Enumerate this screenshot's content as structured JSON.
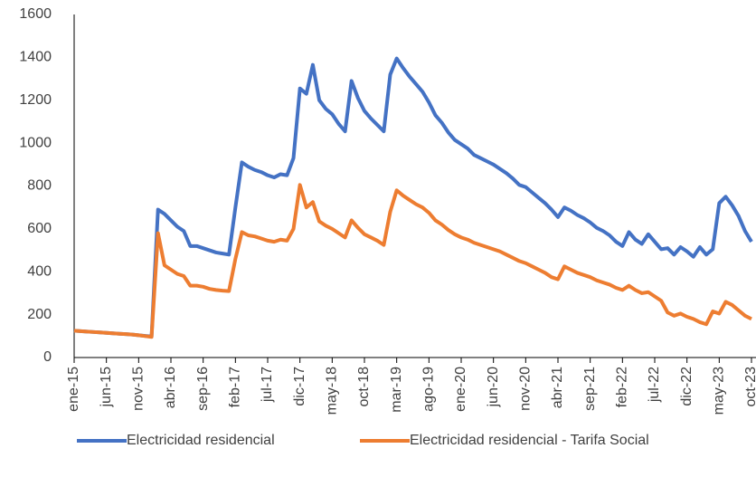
{
  "chart_data": {
    "type": "line",
    "categories": [
      "ene-15",
      null,
      null,
      null,
      null,
      "jun-15",
      null,
      null,
      null,
      null,
      "nov-15",
      null,
      null,
      null,
      null,
      "abr-16",
      null,
      null,
      null,
      null,
      "sep-16",
      null,
      null,
      null,
      null,
      "feb-17",
      null,
      null,
      null,
      null,
      "jul-17",
      null,
      null,
      null,
      null,
      "dic-17",
      null,
      null,
      null,
      null,
      "may-18",
      null,
      null,
      null,
      null,
      "oct-18",
      null,
      null,
      null,
      null,
      "mar-19",
      null,
      null,
      null,
      null,
      "ago-19",
      null,
      null,
      null,
      null,
      "ene-20",
      null,
      null,
      null,
      null,
      "jun-20",
      null,
      null,
      null,
      null,
      "nov-20",
      null,
      null,
      null,
      null,
      "abr-21",
      null,
      null,
      null,
      null,
      "sep-21",
      null,
      null,
      null,
      null,
      "feb-22",
      null,
      null,
      null,
      null,
      "jul-22",
      null,
      null,
      null,
      null,
      "dic-22",
      null,
      null,
      null,
      null,
      "may-23",
      null,
      null,
      null,
      null,
      "oct-23"
    ],
    "series": [
      {
        "name": "Electricidad residencial",
        "color": "#4472c4",
        "values": [
          125,
          123,
          121,
          119,
          117,
          115,
          113,
          111,
          109,
          107,
          104,
          101,
          98,
          690,
          670,
          640,
          610,
          590,
          520,
          520,
          510,
          500,
          490,
          485,
          480,
          700,
          910,
          890,
          875,
          865,
          850,
          840,
          855,
          850,
          930,
          1255,
          1230,
          1365,
          1200,
          1160,
          1135,
          1090,
          1055,
          1290,
          1210,
          1150,
          1115,
          1085,
          1055,
          1320,
          1395,
          1350,
          1310,
          1275,
          1240,
          1190,
          1130,
          1095,
          1050,
          1015,
          995,
          975,
          945,
          930,
          915,
          900,
          880,
          860,
          835,
          805,
          795,
          770,
          745,
          720,
          690,
          655,
          700,
          685,
          665,
          650,
          630,
          605,
          590,
          570,
          540,
          520,
          585,
          550,
          530,
          575,
          540,
          505,
          510,
          480,
          515,
          495,
          470,
          515,
          480,
          505,
          720,
          750,
          710,
          660,
          590,
          540
        ]
      },
      {
        "name": "Electricidad residencial - Tarifa Social",
        "color": "#ed7d31",
        "values": [
          125,
          123,
          121,
          119,
          117,
          115,
          113,
          111,
          109,
          107,
          104,
          100,
          96,
          580,
          430,
          410,
          390,
          380,
          335,
          335,
          330,
          320,
          315,
          312,
          310,
          460,
          585,
          570,
          565,
          555,
          545,
          540,
          550,
          545,
          600,
          805,
          700,
          725,
          635,
          615,
          600,
          580,
          560,
          640,
          605,
          575,
          560,
          545,
          525,
          680,
          780,
          755,
          735,
          715,
          700,
          675,
          640,
          620,
          595,
          575,
          560,
          550,
          535,
          525,
          515,
          505,
          495,
          480,
          465,
          450,
          440,
          425,
          410,
          395,
          375,
          365,
          425,
          410,
          395,
          385,
          375,
          360,
          350,
          340,
          325,
          315,
          335,
          315,
          300,
          305,
          285,
          265,
          210,
          195,
          205,
          190,
          180,
          165,
          155,
          215,
          205,
          260,
          245,
          220,
          195,
          180
        ]
      }
    ],
    "ylim": [
      0,
      1600
    ],
    "yticks": [
      0,
      200,
      400,
      600,
      800,
      1000,
      1200,
      1400,
      1600
    ],
    "grid": false,
    "legend": "bottom"
  }
}
